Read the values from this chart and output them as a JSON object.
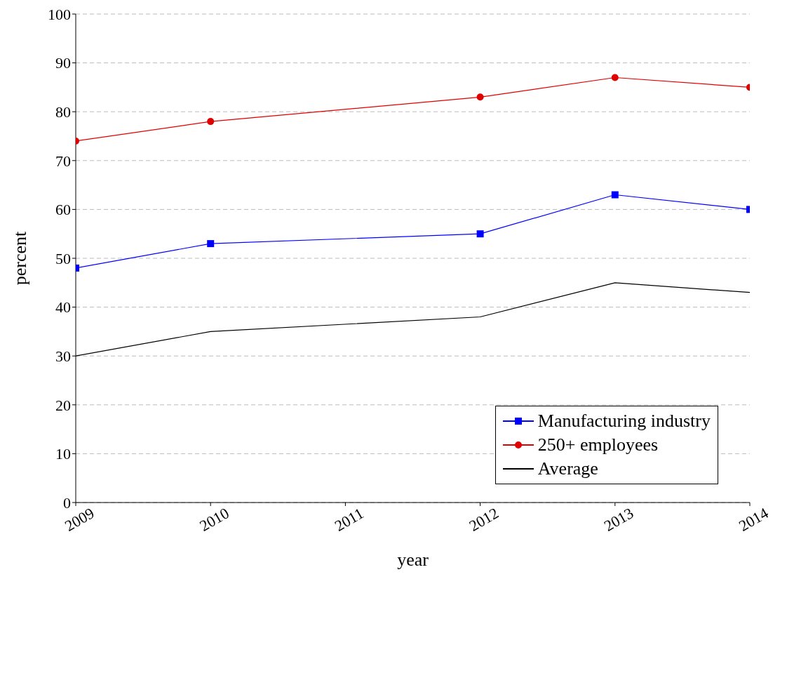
{
  "chart_data": {
    "type": "line",
    "xlabel": "year",
    "ylabel": "percent",
    "x": [
      2009,
      2010,
      2012,
      2013,
      2014
    ],
    "series": [
      {
        "name": "Manufacturing industry",
        "color": "#0000ff",
        "marker": "square",
        "values": [
          48,
          53,
          55,
          63,
          60
        ]
      },
      {
        "name": "250+ employees",
        "color": "#e00000",
        "marker": "circle",
        "values": [
          74,
          78,
          83,
          87,
          85
        ]
      },
      {
        "name": "Average",
        "color": "#000000",
        "marker": "none",
        "values": [
          30,
          35,
          38,
          45,
          43
        ]
      }
    ],
    "xlim": [
      2009,
      2014
    ],
    "xticks": [
      2009,
      2010,
      2011,
      2012,
      2013,
      2014
    ],
    "ylim": [
      0,
      100
    ],
    "yticks": [
      0,
      10,
      20,
      30,
      40,
      50,
      60,
      70,
      80,
      90,
      100
    ],
    "grid": "y",
    "legend": "bottom right",
    "line_style": "solid"
  }
}
